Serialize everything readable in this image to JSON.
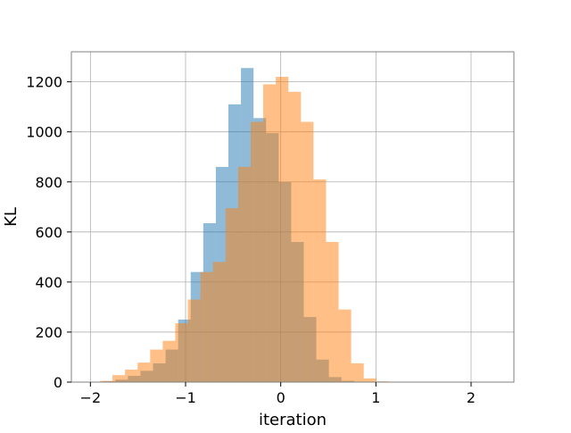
{
  "chart_data": {
    "type": "bar",
    "subtype": "histogram",
    "title": "",
    "xlabel": "iteration",
    "ylabel": "KL",
    "xlim": [
      -2.2,
      2.45
    ],
    "ylim": [
      0,
      1320
    ],
    "x_ticks": [
      {
        "value": -2,
        "label": "−2"
      },
      {
        "value": -1,
        "label": "−1"
      },
      {
        "value": 0,
        "label": "0"
      },
      {
        "value": 1,
        "label": "1"
      },
      {
        "value": 2,
        "label": "2"
      }
    ],
    "y_ticks": [
      {
        "value": 0,
        "label": "0"
      },
      {
        "value": 200,
        "label": "200"
      },
      {
        "value": 400,
        "label": "400"
      },
      {
        "value": 600,
        "label": "600"
      },
      {
        "value": 800,
        "label": "800"
      },
      {
        "value": 1000,
        "label": "1000"
      },
      {
        "value": 1200,
        "label": "1200"
      }
    ],
    "grid": true,
    "legend": "none",
    "series": [
      {
        "color": "#1f77b4",
        "opacity": 0.5,
        "bin_start": -1.87,
        "bin_width": 0.132,
        "values": [
          3,
          10,
          25,
          45,
          75,
          130,
          250,
          440,
          635,
          860,
          1110,
          1255,
          1055,
          995,
          800,
          560,
          260,
          90,
          20,
          5
        ]
      },
      {
        "color": "#ff7f0e",
        "opacity": 0.5,
        "bin_start": -1.9,
        "bin_width": 0.132,
        "values": [
          5,
          28,
          50,
          78,
          130,
          165,
          235,
          330,
          440,
          480,
          695,
          860,
          1040,
          1190,
          1220,
          1160,
          1040,
          810,
          560,
          290,
          75,
          15,
          3
        ]
      }
    ]
  }
}
